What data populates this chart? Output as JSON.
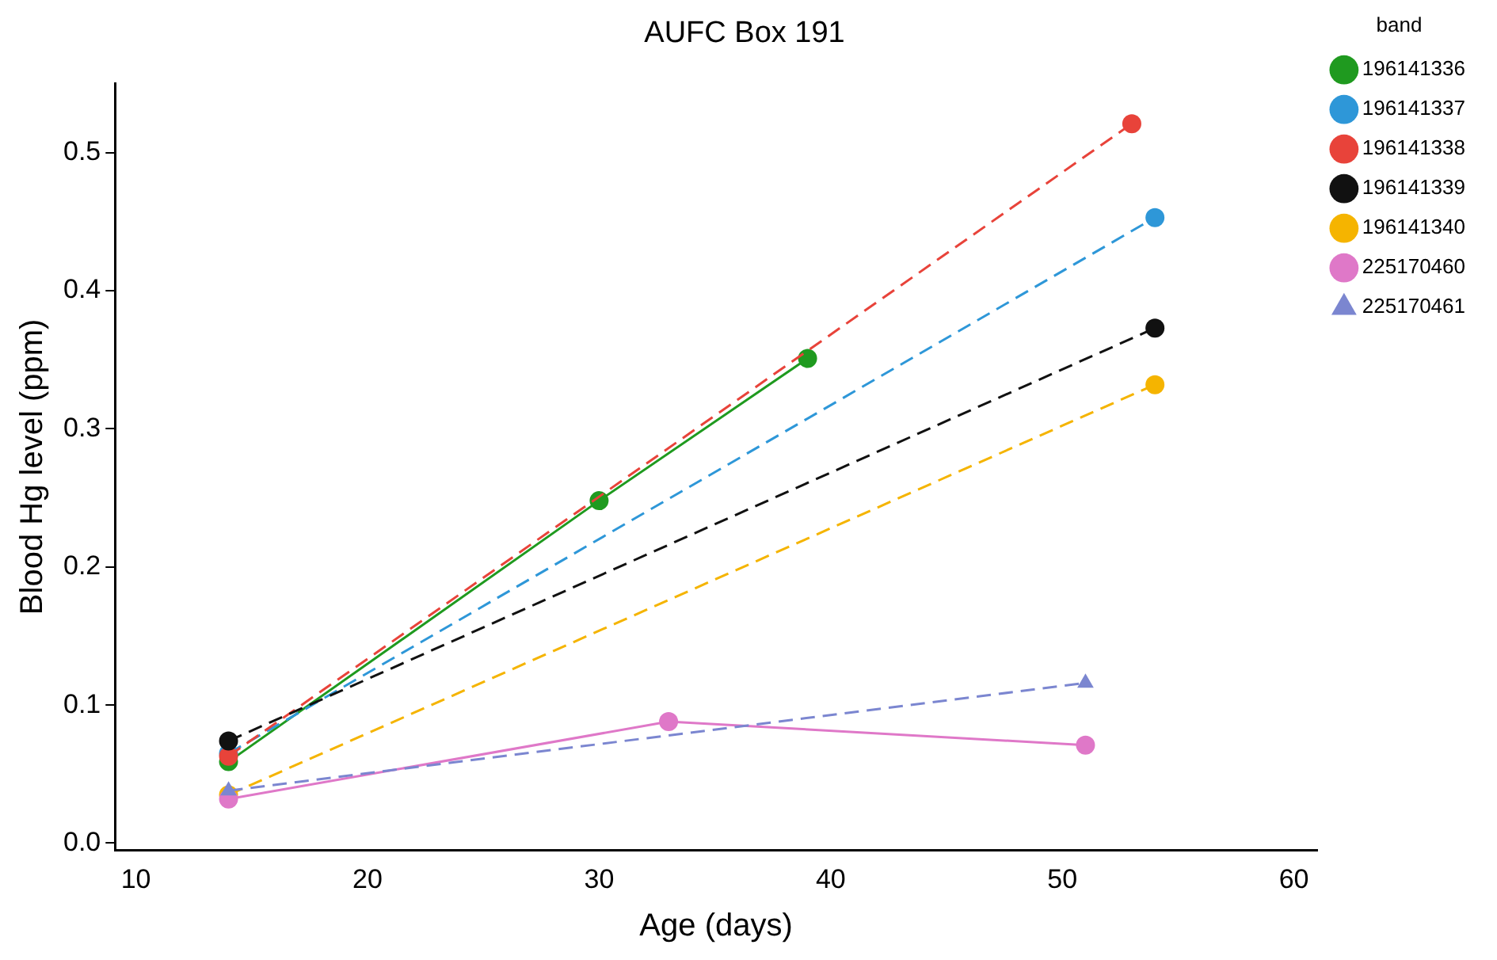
{
  "chart_data": {
    "type": "line",
    "title": "AUFC Box 191",
    "xlabel": "Age (days)",
    "ylabel": "Blood Hg level (ppm)",
    "legend_title": "band",
    "legend": "top right",
    "grid": false,
    "xlim": [
      9.1,
      61
    ],
    "xticks": [
      10,
      20,
      30,
      40,
      50,
      60
    ],
    "ylim": [
      -0.005,
      0.55
    ],
    "yticks": [
      {
        "value": 0,
        "label": "0.0"
      },
      0.1,
      0.2,
      0.3,
      0.4,
      0.5
    ],
    "series": [
      {
        "name": "196141336",
        "color": "#1f9a1f",
        "x": [
          14,
          30,
          39
        ],
        "values": [
          0.059,
          0.248,
          0.351
        ],
        "line_style": "solid",
        "marker": "circle"
      },
      {
        "name": "196141337",
        "color": "#2e97d8",
        "x": [
          14,
          54
        ],
        "values": [
          0.065,
          0.453
        ],
        "line_style": "dashed",
        "marker": "circle"
      },
      {
        "name": "196141338",
        "color": "#e8433a",
        "x": [
          14,
          53
        ],
        "values": [
          0.063,
          0.521
        ],
        "line_style": "dashed",
        "marker": "circle"
      },
      {
        "name": "196141339",
        "color": "#111111",
        "x": [
          14,
          54
        ],
        "values": [
          0.074,
          0.373
        ],
        "line_style": "dashed",
        "marker": "circle"
      },
      {
        "name": "196141340",
        "color": "#f5b400",
        "x": [
          14,
          54
        ],
        "values": [
          0.035,
          0.332
        ],
        "line_style": "dashed",
        "marker": "circle"
      },
      {
        "name": "225170460",
        "color": "#df78c8",
        "x": [
          14,
          33,
          51
        ],
        "values": [
          0.032,
          0.088,
          0.071
        ],
        "line_style": "solid",
        "marker": "circle"
      },
      {
        "name": "225170461",
        "color": "#7b86d0",
        "x": [
          14,
          51
        ],
        "values": [
          0.038,
          0.116
        ],
        "line_style": "dashed",
        "marker": "triangle"
      }
    ]
  }
}
